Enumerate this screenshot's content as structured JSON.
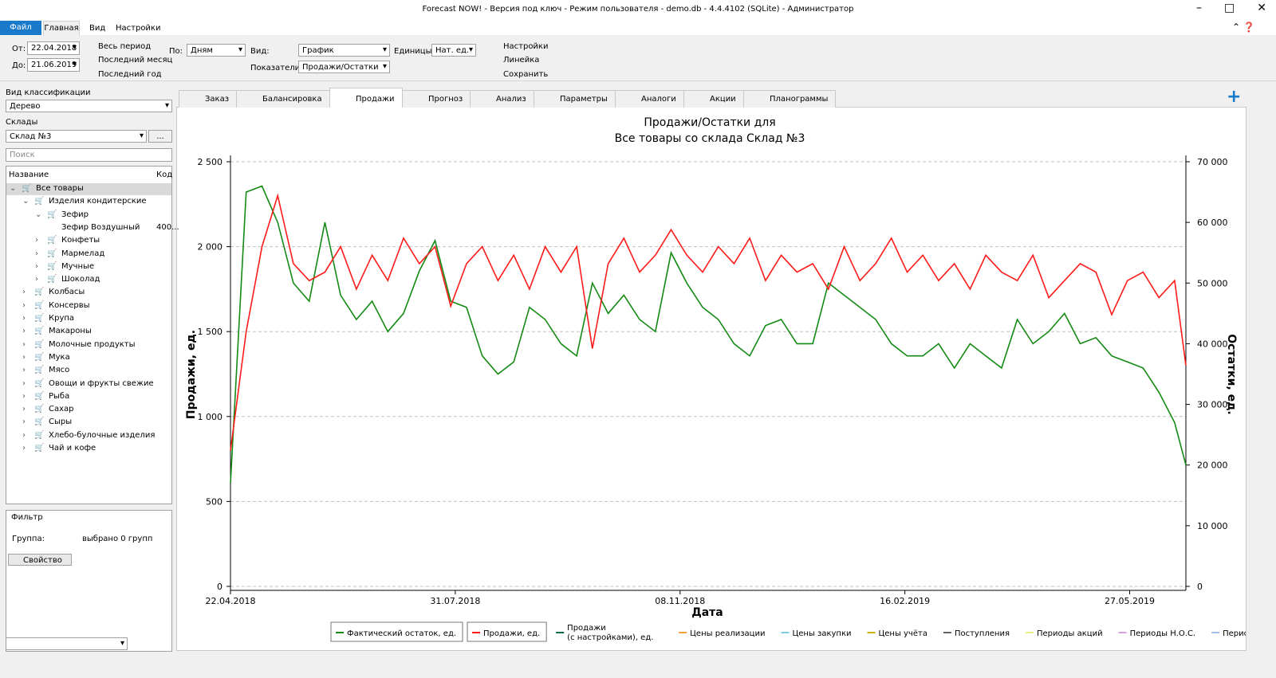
{
  "window": {
    "title": "Forecast NOW! - Версия под ключ - Режим пользователя - demo.db - 4.4.4102 (SQLite) - Администратор"
  },
  "menu": [
    "Файл",
    "Главная",
    "Вид",
    "Настройки"
  ],
  "toolbar": {
    "from_label": "От:",
    "from": "22.04.2018",
    "to_label": "До:",
    "to": "21.06.2019",
    "all_period": "Весь период",
    "last_month": "Последний месяц",
    "last_year": "Последний год",
    "by_label": "По:",
    "by": "Дням",
    "view_label": "Вид:",
    "view": "График",
    "units_label": "Единицы:",
    "units": "Нат. ед.",
    "metrics_label": "Показатели:",
    "metrics": "Продажи/Остатки",
    "settings": "Настройки",
    "ruler": "Линейка",
    "save": "Сохранить"
  },
  "sidebar": {
    "classification_label": "Вид классификации",
    "classification": "Дерево",
    "warehouses_label": "Склады",
    "warehouse": "Склад №3",
    "more": "...",
    "search": "Поиск",
    "col_name": "Название",
    "col_code": "Код",
    "tree": [
      {
        "label": "Все товары",
        "children": [
          {
            "label": "Изделия кондитерские",
            "children": [
              {
                "label": "Зефир",
                "children": [
                  {
                    "label": "Зефир Воздушный",
                    "code": "400..."
                  }
                ]
              },
              {
                "label": "Конфеты",
                "collapsed": true
              },
              {
                "label": "Мармелад",
                "collapsed": true
              },
              {
                "label": "Мучные",
                "collapsed": true
              },
              {
                "label": "Шоколад",
                "collapsed": true
              }
            ]
          },
          {
            "label": "Колбасы",
            "collapsed": true
          },
          {
            "label": "Консервы",
            "collapsed": true
          },
          {
            "label": "Крупа",
            "collapsed": true
          },
          {
            "label": "Макароны",
            "collapsed": true
          },
          {
            "label": "Молочные продукты",
            "collapsed": true
          },
          {
            "label": "Мука",
            "collapsed": true
          },
          {
            "label": "Мясо",
            "collapsed": true
          },
          {
            "label": "Овощи и фрукты свежие",
            "collapsed": true
          },
          {
            "label": "Рыба",
            "collapsed": true
          },
          {
            "label": "Сахар",
            "collapsed": true
          },
          {
            "label": "Сыры",
            "collapsed": true
          },
          {
            "label": "Хлебо-булочные изделия",
            "collapsed": true
          },
          {
            "label": "Чай и кофе",
            "collapsed": true
          }
        ]
      }
    ],
    "filter": "Фильтр",
    "group_label": "Группа:",
    "group_value": "выбрано 0 групп",
    "property": "Свойство"
  },
  "tabs": [
    "Заказ",
    "Балансировка",
    "Продажи",
    "Прогноз",
    "Анализ",
    "Параметры",
    "Аналоги",
    "Акции",
    "Планограммы"
  ],
  "active_tab": "Продажи",
  "chart_data": {
    "type": "line",
    "title": "Продажи/Остатки для",
    "subtitle": "Все товары со склада Склад №3",
    "x_label": "Дата",
    "y_label": "Продажи, ед.",
    "y2_label": "Остатки, ед.",
    "x": [
      "22.04.2018",
      "29.04.2018",
      "06.05.2018",
      "13.05.2018",
      "20.05.2018",
      "27.05.2018",
      "03.06.2018",
      "10.06.2018",
      "17.06.2018",
      "24.06.2018",
      "01.07.2018",
      "08.07.2018",
      "15.07.2018",
      "22.07.2018",
      "29.07.2018",
      "05.08.2018",
      "12.08.2018",
      "19.08.2018",
      "26.08.2018",
      "02.09.2018",
      "09.09.2018",
      "16.09.2018",
      "23.09.2018",
      "30.09.2018",
      "07.10.2018",
      "14.10.2018",
      "21.10.2018",
      "28.10.2018",
      "04.11.2018",
      "11.11.2018",
      "18.11.2018",
      "25.11.2018",
      "02.12.2018",
      "09.12.2018",
      "16.12.2018",
      "23.12.2018",
      "30.12.2018",
      "06.01.2019",
      "13.01.2019",
      "20.01.2019",
      "27.01.2019",
      "03.02.2019",
      "10.02.2019",
      "17.02.2019",
      "24.02.2019",
      "03.03.2019",
      "10.03.2019",
      "17.03.2019",
      "24.03.2019",
      "31.03.2019",
      "07.04.2019",
      "14.04.2019",
      "21.04.2019",
      "28.04.2019",
      "05.05.2019",
      "12.05.2019",
      "19.05.2019",
      "26.05.2019",
      "02.06.2019",
      "09.06.2019",
      "16.06.2019",
      "21.06.2019"
    ],
    "xlim": [
      "22.04.2018",
      "21.06.2019"
    ],
    "xticks": [
      "22.04.2018",
      "31.07.2018",
      "08.11.2018",
      "16.02.2019",
      "27.05.2019"
    ],
    "ylim": [
      0,
      2500
    ],
    "yticks": [
      0,
      500,
      {
        "value": 1000,
        "label": "1 000"
      },
      {
        "value": 1500,
        "label": "1 500"
      },
      {
        "value": 2000,
        "label": "2 000"
      },
      {
        "value": 2500,
        "label": "2 500"
      }
    ],
    "y2lim": [
      0,
      70000
    ],
    "y2ticks": [
      0,
      {
        "value": 10000,
        "label": "10 000"
      },
      {
        "value": 20000,
        "label": "20 000"
      },
      {
        "value": 30000,
        "label": "30 000"
      },
      {
        "value": 40000,
        "label": "40 000"
      },
      {
        "value": 50000,
        "label": "50 000"
      },
      {
        "value": 60000,
        "label": "60 000"
      },
      {
        "value": 70000,
        "label": "70 000"
      }
    ],
    "grid": true,
    "series": [
      {
        "name": "Фактический остаток, ед.",
        "color": "#138a13",
        "axis": "y2",
        "values": [
          17000,
          65000,
          66000,
          60000,
          50000,
          47000,
          60000,
          48000,
          44000,
          47000,
          42000,
          45000,
          52000,
          57000,
          47000,
          46000,
          38000,
          35000,
          37000,
          46000,
          44000,
          40000,
          38000,
          50000,
          45000,
          48000,
          44000,
          42000,
          55000,
          50000,
          46000,
          44000,
          40000,
          38000,
          43000,
          44000,
          40000,
          40000,
          50000,
          48000,
          46000,
          44000,
          40000,
          38000,
          38000,
          40000,
          36000,
          40000,
          38000,
          36000,
          44000,
          40000,
          42000,
          45000,
          40000,
          41000,
          38000,
          37000,
          36000,
          32000,
          27000,
          20000
        ]
      },
      {
        "name": "Продажи, ед.",
        "color": "#ff1a1a",
        "values": [
          800,
          1500,
          2000,
          2300,
          1900,
          1800,
          1850,
          2000,
          1750,
          1950,
          1800,
          2050,
          1900,
          2000,
          1650,
          1900,
          2000,
          1800,
          1950,
          1750,
          2000,
          1850,
          2000,
          1400,
          1900,
          2050,
          1850,
          1950,
          2100,
          1950,
          1850,
          2000,
          1900,
          2050,
          1800,
          1950,
          1850,
          1900,
          1750,
          2000,
          1800,
          1900,
          2050,
          1850,
          1950,
          1800,
          1900,
          1750,
          1950,
          1850,
          1800,
          1950,
          1700,
          1800,
          1900,
          1850,
          1600,
          1800,
          1850,
          1700,
          1800,
          1300
        ]
      }
    ],
    "legend_items": [
      {
        "name": "Продажи\n(с настройками), ед.",
        "color": "#006a4a"
      },
      {
        "name": "Цены реализации",
        "color": "#f0a040"
      },
      {
        "name": "Цены закупки",
        "color": "#80c8e8"
      },
      {
        "name": "Цены учёта",
        "color": "#c8b400"
      },
      {
        "name": "Поступления",
        "color": "#606060"
      },
      {
        "name": "Периоды акций",
        "color": "#eeee80"
      },
      {
        "name": "Периоды Н.О.С.",
        "color": "#d8a0e0"
      },
      {
        "name": "Периоды дефицита",
        "color": "#a0c0e8"
      }
    ]
  }
}
